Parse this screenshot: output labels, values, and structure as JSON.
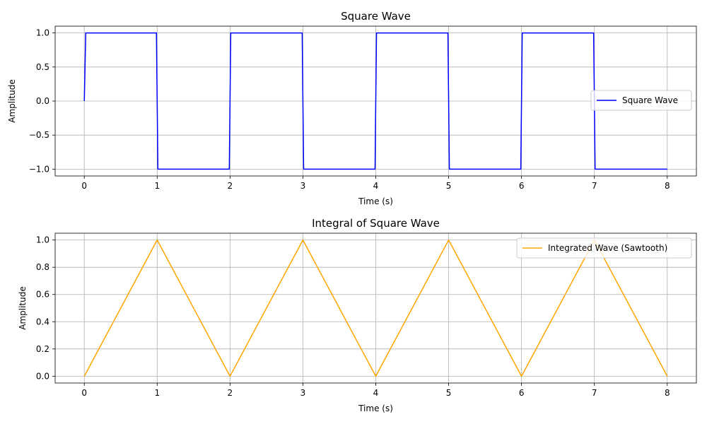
{
  "chart_data": [
    {
      "type": "line",
      "title": "Square Wave",
      "xlabel": "Time (s)",
      "ylabel": "Amplitude",
      "xlim": [
        -0.4,
        8.4
      ],
      "ylim": [
        -1.1,
        1.1
      ],
      "xticks": [
        "0",
        "1",
        "2",
        "3",
        "4",
        "5",
        "6",
        "7",
        "8"
      ],
      "yticks": [
        "−1.0",
        "−0.5",
        "0.0",
        "0.5",
        "1.0"
      ],
      "grid": true,
      "legend_position": "center-right",
      "series": [
        {
          "name": "Square Wave",
          "color": "#0000ff",
          "x": [
            0,
            0.02,
            0.99,
            1.01,
            1.99,
            2.01,
            2.99,
            3.01,
            3.99,
            4.01,
            4.99,
            5.01,
            5.99,
            6.01,
            6.99,
            7.01,
            8
          ],
          "y": [
            0,
            1,
            1,
            -1,
            -1,
            1,
            1,
            -1,
            -1,
            1,
            1,
            -1,
            -1,
            1,
            1,
            -1,
            -1
          ]
        }
      ]
    },
    {
      "type": "line",
      "title": "Integral of Square Wave",
      "xlabel": "Time (s)",
      "ylabel": "Amplitude",
      "xlim": [
        -0.4,
        8.4
      ],
      "ylim": [
        -0.05,
        1.05
      ],
      "xticks": [
        "0",
        "1",
        "2",
        "3",
        "4",
        "5",
        "6",
        "7",
        "8"
      ],
      "yticks": [
        "0.0",
        "0.2",
        "0.4",
        "0.6",
        "0.8",
        "1.0"
      ],
      "grid": true,
      "legend_position": "top-right",
      "series": [
        {
          "name": "Integrated Wave (Sawtooth)",
          "color": "#ffa500",
          "x": [
            0,
            1,
            2,
            3,
            4,
            5,
            6,
            7,
            8
          ],
          "y": [
            0,
            1,
            0,
            1,
            0,
            1,
            0,
            1,
            0
          ]
        }
      ]
    }
  ]
}
